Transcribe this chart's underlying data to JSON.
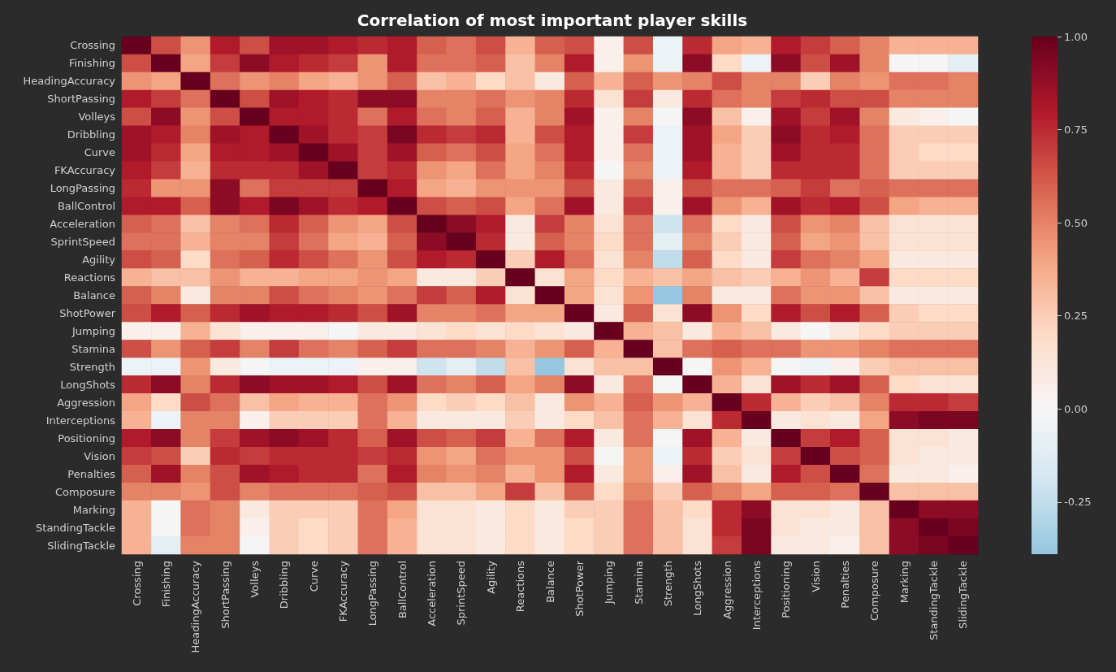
{
  "chart_data": {
    "type": "heatmap",
    "title": "Correlation of most important player skills",
    "categories": [
      "Crossing",
      "Finishing",
      "HeadingAccuracy",
      "ShortPassing",
      "Volleys",
      "Dribbling",
      "Curve",
      "FKAccuracy",
      "LongPassing",
      "BallControl",
      "Acceleration",
      "SprintSpeed",
      "Agility",
      "Reactions",
      "Balance",
      "ShotPower",
      "Jumping",
      "Stamina",
      "Strength",
      "LongShots",
      "Aggression",
      "Interceptions",
      "Positioning",
      "Vision",
      "Penalties",
      "Composure",
      "Marking",
      "StandingTackle",
      "SlidingTackle"
    ],
    "y_categories": [
      "Crossing",
      "Finishing",
      "HeadingAccuracy",
      "ShortPassing",
      "Volleys",
      "Dribbling",
      "Curve",
      "FKAccuracy",
      "LongPassing",
      "BallControl",
      "Acceleration",
      "SprintSpeed",
      "Agility",
      "Reactions",
      "Balance",
      "ShotPower",
      "Jumping",
      "Stamina",
      "Strength",
      "LongShots",
      "Aggression",
      "Interceptions",
      "Positioning",
      "Vision",
      "Penalties",
      "Composure",
      "Marking",
      "StandingTackle",
      "SlidingTackle"
    ],
    "cells": [
      [
        1,
        0.65,
        0.45,
        0.8,
        0.65,
        0.85,
        0.85,
        0.8,
        0.75,
        0.8,
        0.6,
        0.55,
        0.65,
        0.35,
        0.6,
        0.65,
        0.05,
        0.65,
        -0.05,
        0.75,
        0.4,
        0.35,
        0.8,
        0.7,
        0.6,
        0.5,
        0.35,
        0.35,
        0.35
      ],
      [
        0.65,
        1,
        0.4,
        0.7,
        0.9,
        0.8,
        0.75,
        0.7,
        0.45,
        0.8,
        0.55,
        0.55,
        0.6,
        0.3,
        0.5,
        0.8,
        0.05,
        0.45,
        -0.05,
        0.9,
        0.2,
        -0.05,
        0.9,
        0.65,
        0.85,
        0.5,
        0,
        0,
        -0.1
      ],
      [
        0.45,
        0.4,
        1,
        0.55,
        0.45,
        0.5,
        0.4,
        0.35,
        0.45,
        0.6,
        0.3,
        0.35,
        0.2,
        0.3,
        0.1,
        0.6,
        0.35,
        0.6,
        0.45,
        0.5,
        0.65,
        0.5,
        0.5,
        0.25,
        0.5,
        0.45,
        0.55,
        0.55,
        0.5
      ],
      [
        0.8,
        0.7,
        0.55,
        1,
        0.65,
        0.85,
        0.8,
        0.75,
        0.9,
        0.9,
        0.5,
        0.5,
        0.55,
        0.45,
        0.5,
        0.75,
        0.15,
        0.7,
        0.1,
        0.75,
        0.55,
        0.5,
        0.7,
        0.75,
        0.65,
        0.65,
        0.5,
        0.5,
        0.5
      ],
      [
        0.65,
        0.9,
        0.45,
        0.65,
        1,
        0.8,
        0.8,
        0.75,
        0.55,
        0.8,
        0.55,
        0.5,
        0.6,
        0.35,
        0.5,
        0.85,
        0.05,
        0.5,
        0,
        0.9,
        0.3,
        0.05,
        0.85,
        0.7,
        0.85,
        0.5,
        0.1,
        0.05,
        0
      ],
      [
        0.85,
        0.8,
        0.5,
        0.85,
        0.8,
        1,
        0.85,
        0.75,
        0.7,
        0.95,
        0.75,
        0.7,
        0.75,
        0.35,
        0.65,
        0.8,
        0.05,
        0.7,
        -0.05,
        0.85,
        0.4,
        0.25,
        0.9,
        0.75,
        0.8,
        0.55,
        0.25,
        0.25,
        0.25
      ],
      [
        0.85,
        0.75,
        0.4,
        0.8,
        0.8,
        0.85,
        1,
        0.85,
        0.7,
        0.85,
        0.6,
        0.55,
        0.65,
        0.4,
        0.55,
        0.8,
        0.05,
        0.55,
        -0.05,
        0.85,
        0.35,
        0.25,
        0.85,
        0.75,
        0.75,
        0.55,
        0.25,
        0.2,
        0.2
      ],
      [
        0.8,
        0.7,
        0.35,
        0.75,
        0.75,
        0.75,
        0.85,
        1,
        0.7,
        0.75,
        0.45,
        0.4,
        0.55,
        0.4,
        0.5,
        0.75,
        0,
        0.5,
        -0.05,
        0.8,
        0.35,
        0.25,
        0.75,
        0.75,
        0.75,
        0.55,
        0.25,
        0.25,
        0.25
      ],
      [
        0.75,
        0.45,
        0.45,
        0.9,
        0.55,
        0.7,
        0.7,
        0.7,
        1,
        0.8,
        0.4,
        0.35,
        0.45,
        0.45,
        0.45,
        0.65,
        0.1,
        0.6,
        0.05,
        0.65,
        0.55,
        0.55,
        0.6,
        0.7,
        0.55,
        0.6,
        0.55,
        0.55,
        0.55
      ],
      [
        0.8,
        0.8,
        0.6,
        0.9,
        0.8,
        0.95,
        0.85,
        0.75,
        0.8,
        1,
        0.65,
        0.6,
        0.65,
        0.4,
        0.55,
        0.85,
        0.1,
        0.7,
        0.05,
        0.85,
        0.45,
        0.35,
        0.85,
        0.75,
        0.8,
        0.65,
        0.4,
        0.35,
        0.35
      ],
      [
        0.6,
        0.55,
        0.3,
        0.5,
        0.55,
        0.75,
        0.6,
        0.45,
        0.4,
        0.65,
        1,
        0.9,
        0.8,
        0.1,
        0.7,
        0.5,
        0.15,
        0.55,
        -0.2,
        0.55,
        0.2,
        0.1,
        0.65,
        0.45,
        0.5,
        0.3,
        0.15,
        0.15,
        0.15
      ],
      [
        0.55,
        0.55,
        0.35,
        0.5,
        0.5,
        0.7,
        0.55,
        0.4,
        0.35,
        0.6,
        0.9,
        1,
        0.75,
        0.1,
        0.6,
        0.5,
        0.2,
        0.55,
        -0.1,
        0.5,
        0.25,
        0.1,
        0.6,
        0.4,
        0.45,
        0.3,
        0.15,
        0.15,
        0.15
      ],
      [
        0.65,
        0.6,
        0.2,
        0.55,
        0.6,
        0.75,
        0.65,
        0.55,
        0.45,
        0.65,
        0.8,
        0.75,
        1,
        0.25,
        0.8,
        0.55,
        0.15,
        0.5,
        -0.25,
        0.6,
        0.2,
        0.1,
        0.7,
        0.55,
        0.5,
        0.4,
        0.1,
        0.1,
        0.1
      ],
      [
        0.35,
        0.3,
        0.3,
        0.45,
        0.35,
        0.35,
        0.4,
        0.4,
        0.45,
        0.4,
        0.1,
        0.1,
        0.25,
        1,
        0.15,
        0.4,
        0.2,
        0.35,
        0.3,
        0.4,
        0.3,
        0.25,
        0.35,
        0.45,
        0.35,
        0.7,
        0.2,
        0.2,
        0.2
      ],
      [
        0.6,
        0.5,
        0.1,
        0.5,
        0.5,
        0.65,
        0.55,
        0.5,
        0.45,
        0.55,
        0.7,
        0.6,
        0.8,
        0.15,
        1,
        0.4,
        0.15,
        0.45,
        -0.39,
        0.5,
        0.1,
        0.1,
        0.55,
        0.45,
        0.45,
        0.3,
        0.1,
        0.1,
        0.1
      ],
      [
        0.65,
        0.8,
        0.6,
        0.75,
        0.85,
        0.8,
        0.8,
        0.75,
        0.65,
        0.85,
        0.5,
        0.5,
        0.55,
        0.4,
        0.4,
        1,
        0.1,
        0.6,
        0.15,
        0.9,
        0.45,
        0.2,
        0.8,
        0.65,
        0.8,
        0.6,
        0.25,
        0.2,
        0.2
      ],
      [
        0.05,
        0.05,
        0.35,
        0.15,
        0.05,
        0.05,
        0.05,
        0,
        0.1,
        0.1,
        0.15,
        0.2,
        0.15,
        0.2,
        0.15,
        0.1,
        1,
        0.35,
        0.3,
        0.1,
        0.35,
        0.3,
        0.1,
        0,
        0.1,
        0.2,
        0.25,
        0.25,
        0.25
      ],
      [
        0.65,
        0.45,
        0.6,
        0.7,
        0.5,
        0.7,
        0.55,
        0.5,
        0.6,
        0.7,
        0.55,
        0.55,
        0.5,
        0.35,
        0.45,
        0.6,
        0.35,
        1,
        0.3,
        0.55,
        0.6,
        0.55,
        0.55,
        0.45,
        0.45,
        0.5,
        0.55,
        0.55,
        0.55
      ],
      [
        -0.05,
        -0.05,
        0.45,
        0.1,
        0,
        -0.05,
        -0.05,
        -0.05,
        0.05,
        0.05,
        -0.2,
        -0.1,
        -0.25,
        0.3,
        -0.39,
        0.15,
        0.3,
        0.3,
        1,
        0,
        0.45,
        0.35,
        0,
        -0.05,
        0.05,
        0.25,
        0.3,
        0.3,
        0.3
      ],
      [
        0.75,
        0.9,
        0.5,
        0.75,
        0.9,
        0.85,
        0.85,
        0.8,
        0.65,
        0.85,
        0.55,
        0.5,
        0.6,
        0.4,
        0.5,
        0.9,
        0.1,
        0.55,
        0,
        1,
        0.35,
        0.15,
        0.85,
        0.75,
        0.85,
        0.6,
        0.2,
        0.15,
        0.15
      ],
      [
        0.4,
        0.2,
        0.65,
        0.55,
        0.3,
        0.4,
        0.35,
        0.35,
        0.55,
        0.45,
        0.2,
        0.25,
        0.2,
        0.3,
        0.1,
        0.45,
        0.35,
        0.6,
        0.45,
        0.35,
        1,
        0.75,
        0.35,
        0.25,
        0.3,
        0.5,
        0.75,
        0.75,
        0.7
      ],
      [
        0.35,
        -0.05,
        0.5,
        0.5,
        0.05,
        0.25,
        0.25,
        0.25,
        0.55,
        0.35,
        0.1,
        0.1,
        0.1,
        0.25,
        0.1,
        0.2,
        0.3,
        0.55,
        0.35,
        0.15,
        0.75,
        1,
        0.1,
        0.15,
        0.1,
        0.4,
        0.9,
        0.95,
        0.95
      ],
      [
        0.8,
        0.9,
        0.5,
        0.7,
        0.85,
        0.9,
        0.85,
        0.75,
        0.6,
        0.85,
        0.65,
        0.6,
        0.7,
        0.35,
        0.55,
        0.8,
        0.1,
        0.55,
        0,
        0.85,
        0.35,
        0.1,
        1,
        0.7,
        0.8,
        0.6,
        0.15,
        0.15,
        0.1
      ],
      [
        0.7,
        0.65,
        0.25,
        0.75,
        0.7,
        0.75,
        0.75,
        0.75,
        0.7,
        0.75,
        0.45,
        0.4,
        0.55,
        0.45,
        0.45,
        0.65,
        0,
        0.45,
        -0.05,
        0.75,
        0.25,
        0.15,
        0.7,
        1,
        0.65,
        0.6,
        0.15,
        0.1,
        0.1
      ],
      [
        0.6,
        0.85,
        0.5,
        0.65,
        0.85,
        0.8,
        0.75,
        0.75,
        0.55,
        0.8,
        0.5,
        0.45,
        0.5,
        0.35,
        0.45,
        0.8,
        0.1,
        0.45,
        0.05,
        0.85,
        0.3,
        0.1,
        0.8,
        0.65,
        1,
        0.55,
        0.1,
        0.1,
        0.05
      ],
      [
        0.5,
        0.5,
        0.45,
        0.65,
        0.5,
        0.55,
        0.55,
        0.55,
        0.6,
        0.65,
        0.3,
        0.3,
        0.4,
        0.7,
        0.3,
        0.6,
        0.2,
        0.5,
        0.25,
        0.6,
        0.5,
        0.4,
        0.6,
        0.6,
        0.55,
        1,
        0.3,
        0.3,
        0.3
      ],
      [
        0.35,
        0,
        0.55,
        0.5,
        0.1,
        0.25,
        0.25,
        0.25,
        0.55,
        0.4,
        0.15,
        0.15,
        0.1,
        0.2,
        0.1,
        0.25,
        0.25,
        0.55,
        0.3,
        0.2,
        0.75,
        0.9,
        0.15,
        0.15,
        0.1,
        0.3,
        1,
        0.9,
        0.9
      ],
      [
        0.35,
        0,
        0.55,
        0.5,
        0.05,
        0.25,
        0.2,
        0.25,
        0.55,
        0.35,
        0.15,
        0.15,
        0.1,
        0.2,
        0.1,
        0.2,
        0.25,
        0.55,
        0.3,
        0.15,
        0.75,
        0.95,
        0.15,
        0.1,
        0.1,
        0.3,
        0.9,
        1,
        0.95
      ],
      [
        0.35,
        -0.1,
        0.5,
        0.5,
        0,
        0.25,
        0.2,
        0.25,
        0.55,
        0.35,
        0.15,
        0.15,
        0.1,
        0.2,
        0.1,
        0.2,
        0.25,
        0.55,
        0.3,
        0.15,
        0.7,
        0.95,
        0.1,
        0.1,
        0.05,
        0.3,
        0.9,
        0.95,
        1
      ]
    ],
    "clim": [
      -0.39,
      1.0
    ],
    "cticks": [
      {
        "value": -0.25,
        "label": "-0.25"
      },
      {
        "value": 0,
        "label": "0.00"
      },
      {
        "value": 0.25,
        "label": "0.25"
      },
      {
        "value": 0.5,
        "label": "0.50"
      },
      {
        "value": 0.75,
        "label": "0.75"
      },
      {
        "value": 1,
        "label": "1.00"
      }
    ]
  }
}
